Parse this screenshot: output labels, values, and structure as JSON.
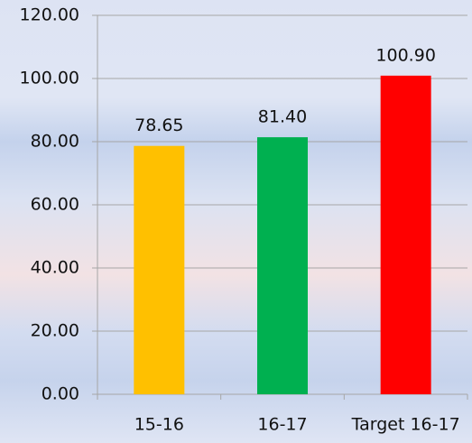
{
  "chart_data": {
    "type": "bar",
    "categories": [
      "15-16",
      "16-17",
      "Target 16-17"
    ],
    "values": [
      78.65,
      81.4,
      100.9
    ],
    "value_labels": [
      "78.65",
      "81.40",
      "100.90"
    ],
    "colors": [
      "#ffc000",
      "#00b050",
      "#ff0000"
    ],
    "ylim": [
      0,
      120
    ],
    "yticks": [
      {
        "value": 0,
        "label": "0.00"
      },
      {
        "value": 20,
        "label": "20.00"
      },
      {
        "value": 40,
        "label": "40.00"
      },
      {
        "value": 60,
        "label": "60.00"
      },
      {
        "value": 80,
        "label": "80.00"
      },
      {
        "value": 100,
        "label": "100.00"
      },
      {
        "value": 120,
        "label": "120.00"
      }
    ],
    "grid": true
  }
}
